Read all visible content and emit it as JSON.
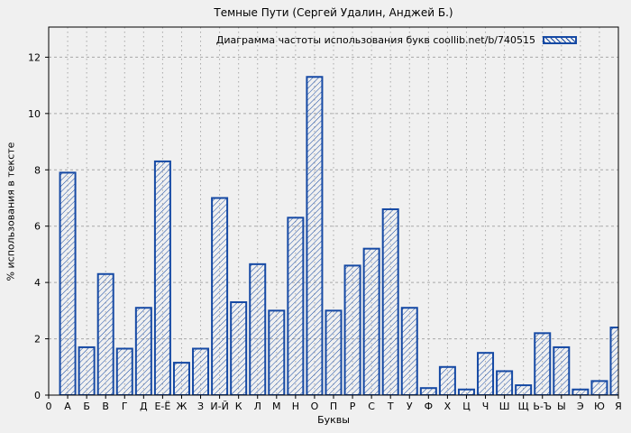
{
  "title": "Темные Пути (Сергей Удалин, Анджей Б.)",
  "legend": {
    "label": "Диаграмма частоты использования букв coollib.net/b/740515"
  },
  "axes": {
    "x_label": "Буквы",
    "y_label": "% использования в тексте",
    "x_origin_label": "0",
    "y_ticks": [
      0,
      2,
      4,
      6,
      8,
      10,
      12
    ]
  },
  "colors": {
    "bar": "#1549a4",
    "background": "#f0f0f0",
    "grid": "#a8a8a8",
    "border": "#000000",
    "text": "#000000"
  },
  "chart_data": {
    "type": "bar",
    "title": "Темные Пути (Сергей Удалин, Анджей Б.)",
    "xlabel": "Буквы",
    "ylabel": "% использования в тексте",
    "categories": [
      "А",
      "Б",
      "В",
      "Г",
      "Д",
      "Е-Ё",
      "Ж",
      "З",
      "И-Й",
      "К",
      "Л",
      "М",
      "Н",
      "О",
      "П",
      "Р",
      "С",
      "Т",
      "У",
      "Ф",
      "Х",
      "Ц",
      "Ч",
      "Ш",
      "Щ",
      "Ь-Ъ",
      "Ы",
      "Э",
      "Ю",
      "Я"
    ],
    "values": [
      7.9,
      1.7,
      4.3,
      1.65,
      3.1,
      8.3,
      1.15,
      1.65,
      7.0,
      3.3,
      4.65,
      3.0,
      6.3,
      11.3,
      3.0,
      4.6,
      5.2,
      6.6,
      3.1,
      0.25,
      1.0,
      0.2,
      1.5,
      0.85,
      0.35,
      2.2,
      1.7,
      0.2,
      0.5,
      2.4
    ],
    "ylim": [
      0,
      13.07
    ],
    "y_tick_step": 2,
    "grid": true,
    "hatch": "diagonal-backslash",
    "legend_label": "Диаграмма частоты использования букв coollib.net/b/740515",
    "legend_position": "top-right"
  }
}
